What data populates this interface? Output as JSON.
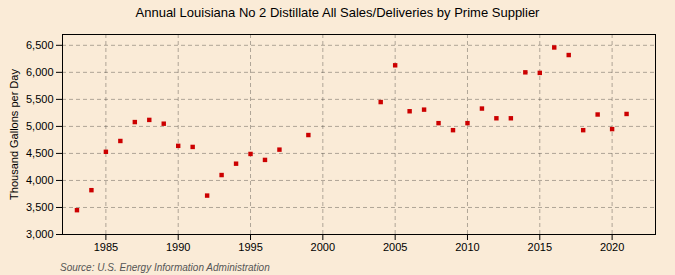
{
  "chart_data": {
    "type": "scatter",
    "title": "Annual Louisiana No 2 Distillate All Sales/Deliveries by Prime Supplier",
    "ylabel": "Thousand Gallons per Day",
    "source": "Source: U.S. Energy Information Administration",
    "background_color": "#faebd7",
    "color": "#cc0000",
    "marker": "square",
    "x": [
      1983,
      1984,
      1985,
      1986,
      1987,
      1988,
      1989,
      1990,
      1991,
      1992,
      1993,
      1994,
      1995,
      1996,
      1997,
      1999,
      2004,
      2005,
      2006,
      2007,
      2008,
      2009,
      2010,
      2011,
      2012,
      2013,
      2014,
      2015,
      2016,
      2017,
      2018,
      2019,
      2020,
      2021
    ],
    "values": [
      3450,
      3820,
      4530,
      4730,
      5080,
      5120,
      5050,
      4640,
      4620,
      3720,
      4100,
      4310,
      4490,
      4380,
      4570,
      4840,
      5450,
      6130,
      5280,
      5310,
      5060,
      4930,
      5060,
      5330,
      5150,
      5150,
      6000,
      5990,
      6460,
      6320,
      4930,
      5220,
      4950,
      5230
    ],
    "xlim": [
      1982,
      2023
    ],
    "xticks": [
      1985,
      1990,
      1995,
      2000,
      2005,
      2010,
      2015,
      2020
    ],
    "ylim": [
      3000,
      6700
    ],
    "yticks": [
      {
        "value": 3000,
        "label": "3,000"
      },
      {
        "value": 3500,
        "label": "3,500"
      },
      {
        "value": 4000,
        "label": "4,000"
      },
      {
        "value": 4500,
        "label": "4,500"
      },
      {
        "value": 5000,
        "label": "5,000"
      },
      {
        "value": 5500,
        "label": "5,500"
      },
      {
        "value": 6000,
        "label": "6,000"
      },
      {
        "value": 6500,
        "label": "6,500"
      }
    ],
    "grid": true
  }
}
